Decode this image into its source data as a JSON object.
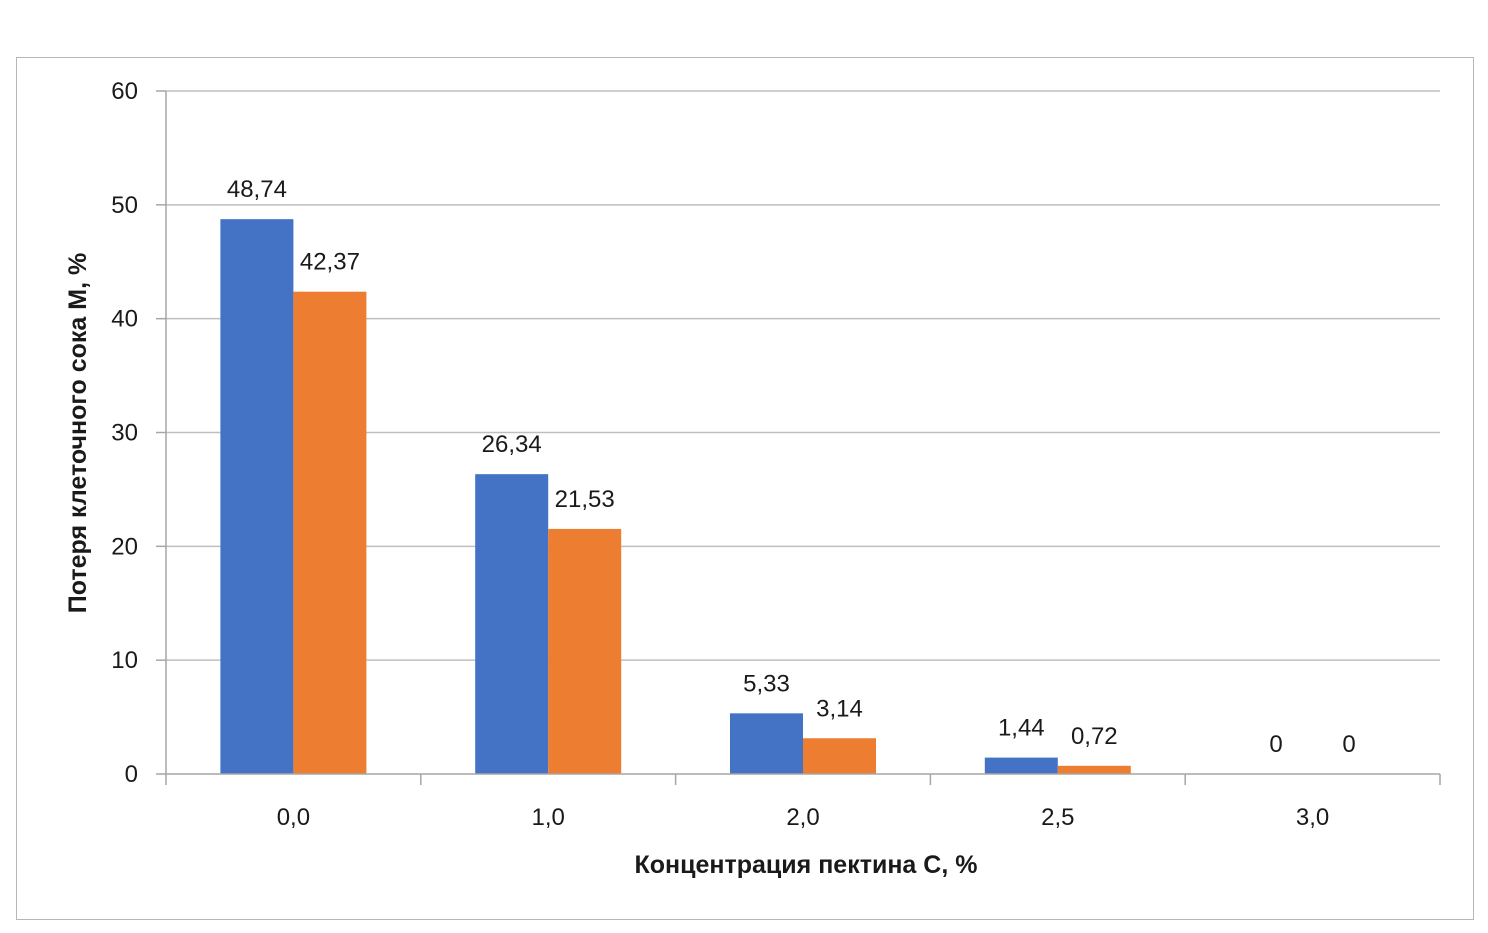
{
  "chart_data": {
    "type": "bar",
    "categories": [
      "0,0",
      "1,0",
      "2,0",
      "2,5",
      "3,0"
    ],
    "series": [
      {
        "values": [
          48.74,
          26.34,
          5.33,
          1.44,
          0
        ],
        "labels": [
          "48,74",
          "26,34",
          "5,33",
          "1,44",
          "0"
        ],
        "color": "#4472C4"
      },
      {
        "values": [
          42.37,
          21.53,
          3.14,
          0.72,
          0
        ],
        "labels": [
          "42,37",
          "21,53",
          "3,14",
          "0,72",
          "0"
        ],
        "color": "#ED7D31"
      }
    ],
    "xlabel": "Концентрация пектина C, %",
    "ylabel": "Потеря клеточного сока M, %",
    "ylim": [
      0,
      60
    ],
    "yticks": [
      "0",
      "10",
      "20",
      "30",
      "40",
      "50",
      "60"
    ],
    "grid": true,
    "gridColor": "#bfbfbf",
    "axisColor": "#a6a6a6"
  }
}
